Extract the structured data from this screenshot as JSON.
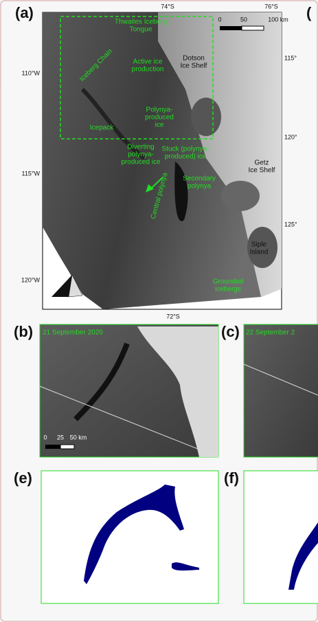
{
  "figure": {
    "panel_a": {
      "label": "(a)",
      "top_labels": [
        "74°S",
        "76°S"
      ],
      "bottom_label": "72°S",
      "left_labels": [
        "110°W",
        "115°W",
        "120°W"
      ],
      "right_labels": [
        "115°",
        "120°",
        "125°"
      ],
      "scale": [
        "0",
        "50",
        "100 km"
      ],
      "green_labels": [
        {
          "lines": [
            "Thwaites Iceberg",
            "Tongue"
          ]
        },
        {
          "lines": [
            "Iceberg Chain"
          ]
        },
        {
          "lines": [
            "Active ice",
            "production"
          ]
        },
        {
          "lines": [
            "Polynya-",
            "produced",
            "ice"
          ]
        },
        {
          "lines": [
            "Icepack"
          ]
        },
        {
          "lines": [
            "Diverting",
            "polynya-",
            "produced ice"
          ]
        },
        {
          "lines": [
            "Stuck (polynya-",
            "produced) ice"
          ]
        },
        {
          "lines": [
            "Central polynya"
          ]
        },
        {
          "lines": [
            "Secondary",
            "polynya"
          ]
        },
        {
          "lines": [
            "Grounded",
            "icebergs"
          ]
        }
      ],
      "black_labels": [
        {
          "lines": [
            "Dotson",
            "Ice Shelf"
          ]
        },
        {
          "lines": [
            "Getz",
            "Ice Shelf"
          ]
        },
        {
          "lines": [
            "Siple",
            "Island"
          ]
        }
      ]
    },
    "panel_b": {
      "label": "(b)",
      "date": "21 September 2020",
      "scale": [
        "0",
        "25",
        "50 km"
      ]
    },
    "panel_c": {
      "label": "(c)",
      "date": "22 September 2"
    },
    "panel_d": {
      "label": "("
    },
    "panel_e": {
      "label": "(e)"
    },
    "panel_f": {
      "label": "(f)"
    }
  }
}
